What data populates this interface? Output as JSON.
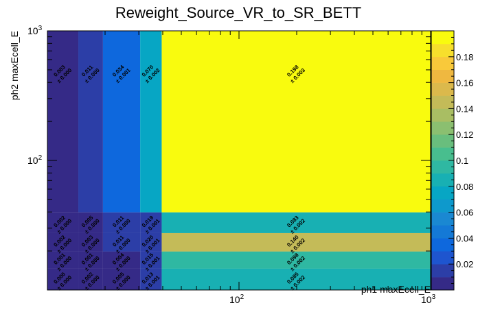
{
  "chart_data": {
    "type": "heatmap",
    "title": "Reweight_Source_VR_to_SR_BETT",
    "xlabel": "ph1 maxEcell_E",
    "ylabel": "ph2 maxEcell_E",
    "xscale": "log",
    "yscale": "log",
    "xlim": [
      10,
      1000
    ],
    "ylim": [
      10,
      1000
    ],
    "x_ticks": [
      {
        "value": 100,
        "base": "10",
        "exp": "2"
      },
      {
        "value": 1000,
        "base": "10",
        "exp": "3"
      }
    ],
    "y_ticks": [
      {
        "value": 100,
        "base": "10",
        "exp": "2"
      },
      {
        "value": 1000,
        "base": "10",
        "exp": "3"
      }
    ],
    "x_bin_edges": [
      10,
      14.5,
      19.5,
      30.5,
      39.5,
      1000
    ],
    "y_bin_edges": [
      10,
      14.6,
      19.8,
      27.5,
      39.7,
      1000
    ],
    "cells": [
      {
        "ix": 0,
        "iy": 4,
        "v": 0.003,
        "label": "0.003",
        "err": "± 0.000"
      },
      {
        "ix": 1,
        "iy": 4,
        "v": 0.011,
        "label": "0.011",
        "err": "± 0.000"
      },
      {
        "ix": 2,
        "iy": 4,
        "v": 0.034,
        "label": "0.034",
        "err": "± 0.001"
      },
      {
        "ix": 3,
        "iy": 4,
        "v": 0.07,
        "label": "0.070",
        "err": "± 0.002"
      },
      {
        "ix": 4,
        "iy": 4,
        "v": 0.198,
        "label": "0.198",
        "err": "± 0.003"
      },
      {
        "ix": 0,
        "iy": 3,
        "v": 0.002,
        "label": "0.002",
        "err": "± 0.000"
      },
      {
        "ix": 1,
        "iy": 3,
        "v": 0.005,
        "label": "0.005",
        "err": "± 0.000"
      },
      {
        "ix": 2,
        "iy": 3,
        "v": 0.011,
        "label": "0.011",
        "err": "± 0.000"
      },
      {
        "ix": 3,
        "iy": 3,
        "v": 0.019,
        "label": "0.019",
        "err": "± 0.001"
      },
      {
        "ix": 4,
        "iy": 3,
        "v": 0.083,
        "label": "0.083",
        "err": "± 0.002"
      },
      {
        "ix": 0,
        "iy": 2,
        "v": 0.002,
        "label": "0.002",
        "err": "± 0.000"
      },
      {
        "ix": 1,
        "iy": 2,
        "v": 0.003,
        "label": "0.003",
        "err": "± 0.000"
      },
      {
        "ix": 2,
        "iy": 2,
        "v": 0.011,
        "label": "0.011",
        "err": "± 0.000"
      },
      {
        "ix": 3,
        "iy": 2,
        "v": 0.02,
        "label": "0.020",
        "err": "± 0.001"
      },
      {
        "ix": 4,
        "iy": 2,
        "v": 0.14,
        "label": "0.140",
        "err": "± 0.002"
      },
      {
        "ix": 0,
        "iy": 1,
        "v": 0.001,
        "label": "0.001",
        "err": "± 0.000"
      },
      {
        "ix": 1,
        "iy": 1,
        "v": 0.001,
        "label": "0.001",
        "err": "± 0.000"
      },
      {
        "ix": 2,
        "iy": 1,
        "v": 0.004,
        "label": "0.004",
        "err": "± 0.000"
      },
      {
        "ix": 3,
        "iy": 1,
        "v": 0.015,
        "label": "0.015",
        "err": "± 0.001"
      },
      {
        "ix": 4,
        "iy": 1,
        "v": 0.098,
        "label": "0.098",
        "err": "± 0.002"
      },
      {
        "ix": 0,
        "iy": 0,
        "v": 0.0,
        "label": "0.000",
        "err": "± 0.000"
      },
      {
        "ix": 1,
        "iy": 0,
        "v": 0.002,
        "label": "0.002",
        "err": "± 0.000"
      },
      {
        "ix": 2,
        "iy": 0,
        "v": 0.005,
        "label": "0.005",
        "err": "± 0.000"
      },
      {
        "ix": 3,
        "iy": 0,
        "v": 0.013,
        "label": "0.013",
        "err": "± 0.001"
      },
      {
        "ix": 4,
        "iy": 0,
        "v": 0.085,
        "label": "0.085",
        "err": "± 0.002"
      }
    ],
    "colorbar": {
      "range": [
        0,
        0.2
      ],
      "ticks": [
        "0.02",
        "0.04",
        "0.06",
        "0.08",
        "0.1",
        "0.12",
        "0.14",
        "0.16",
        "0.18"
      ],
      "palette": [
        "#352a87",
        "#2c3ea7",
        "#1e55cf",
        "#0e68dd",
        "#1479d6",
        "#1a88d2",
        "#0e99cc",
        "#07a6c4",
        "#18b0b3",
        "#2fb8a2",
        "#48be8e",
        "#69be7d",
        "#8bbf70",
        "#a9be63",
        "#c4bb58",
        "#dbb94c",
        "#efb840",
        "#f9c93a",
        "#f7df2c",
        "#f9fb0e"
      ]
    }
  }
}
